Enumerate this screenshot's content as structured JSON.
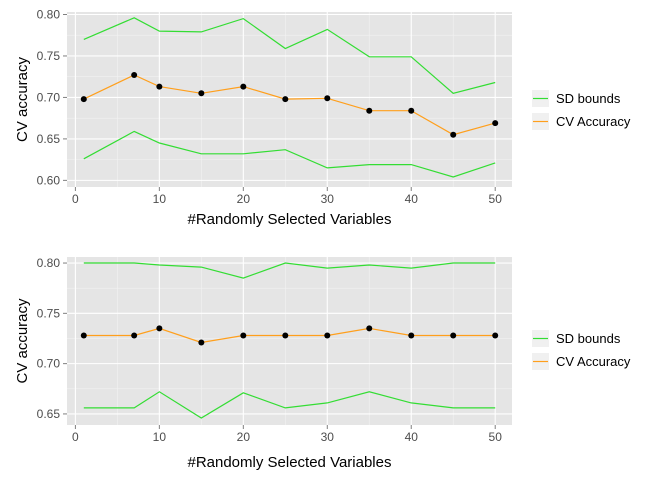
{
  "colors": {
    "panel_bg": "#e5e5e5",
    "grid_major": "#ffffff",
    "grid_minor": "#f2f2f2",
    "sd_bounds": "#33dd33",
    "cv_accuracy": "#ff9f1c",
    "point": "#000000",
    "legend_key_bg": "#f0f0f0"
  },
  "chart_data": [
    {
      "type": "line",
      "xlabel": "#Randomly Selected Variables",
      "ylabel": "CV accuracy",
      "xlim": [
        -1,
        52
      ],
      "ylim": [
        0.592,
        0.803
      ],
      "xticks": [
        0,
        10,
        20,
        30,
        40,
        50
      ],
      "xtick_labels": [
        "0",
        "10",
        "20",
        "30",
        "40",
        "50"
      ],
      "yticks": [
        0.6,
        0.65,
        0.7,
        0.75,
        0.8
      ],
      "ytick_labels": [
        "0.60",
        "0.65",
        "0.70",
        "0.75",
        "0.80"
      ],
      "grid": true,
      "legend": {
        "position": "right",
        "entries": [
          "SD bounds",
          "CV Accuracy"
        ]
      },
      "x": [
        1,
        7,
        10,
        15,
        20,
        25,
        30,
        35,
        40,
        45,
        50
      ],
      "series": [
        {
          "name": "CV Accuracy",
          "values": [
            0.698,
            0.727,
            0.713,
            0.705,
            0.713,
            0.698,
            0.699,
            0.684,
            0.684,
            0.655,
            0.669
          ],
          "markers": true
        },
        {
          "name": "SD bounds",
          "role": "upper",
          "values": [
            0.77,
            0.796,
            0.78,
            0.779,
            0.795,
            0.759,
            0.782,
            0.749,
            0.749,
            0.705,
            0.718
          ]
        },
        {
          "name": "SD bounds",
          "role": "lower",
          "values": [
            0.626,
            0.659,
            0.645,
            0.632,
            0.632,
            0.637,
            0.615,
            0.619,
            0.619,
            0.604,
            0.621
          ]
        }
      ]
    },
    {
      "type": "line",
      "xlabel": "#Randomly Selected Variables",
      "ylabel": "CV accuracy",
      "xlim": [
        -1,
        52
      ],
      "ylim": [
        0.639,
        0.806
      ],
      "xticks": [
        0,
        10,
        20,
        30,
        40,
        50
      ],
      "xtick_labels": [
        "0",
        "10",
        "20",
        "30",
        "40",
        "50"
      ],
      "yticks": [
        0.65,
        0.7,
        0.75,
        0.8
      ],
      "ytick_labels": [
        "0.65",
        "0.70",
        "0.75",
        "0.80"
      ],
      "grid": true,
      "legend": {
        "position": "right",
        "entries": [
          "SD bounds",
          "CV Accuracy"
        ]
      },
      "x": [
        1,
        7,
        10,
        15,
        20,
        25,
        30,
        35,
        40,
        45,
        50
      ],
      "series": [
        {
          "name": "CV Accuracy",
          "values": [
            0.728,
            0.728,
            0.735,
            0.721,
            0.728,
            0.728,
            0.728,
            0.735,
            0.728,
            0.728,
            0.728
          ],
          "markers": true
        },
        {
          "name": "SD bounds",
          "role": "upper",
          "values": [
            0.8,
            0.8,
            0.798,
            0.796,
            0.785,
            0.8,
            0.795,
            0.798,
            0.795,
            0.8,
            0.8
          ]
        },
        {
          "name": "SD bounds",
          "role": "lower",
          "values": [
            0.656,
            0.656,
            0.672,
            0.646,
            0.671,
            0.656,
            0.661,
            0.672,
            0.661,
            0.656,
            0.656
          ]
        }
      ]
    }
  ]
}
